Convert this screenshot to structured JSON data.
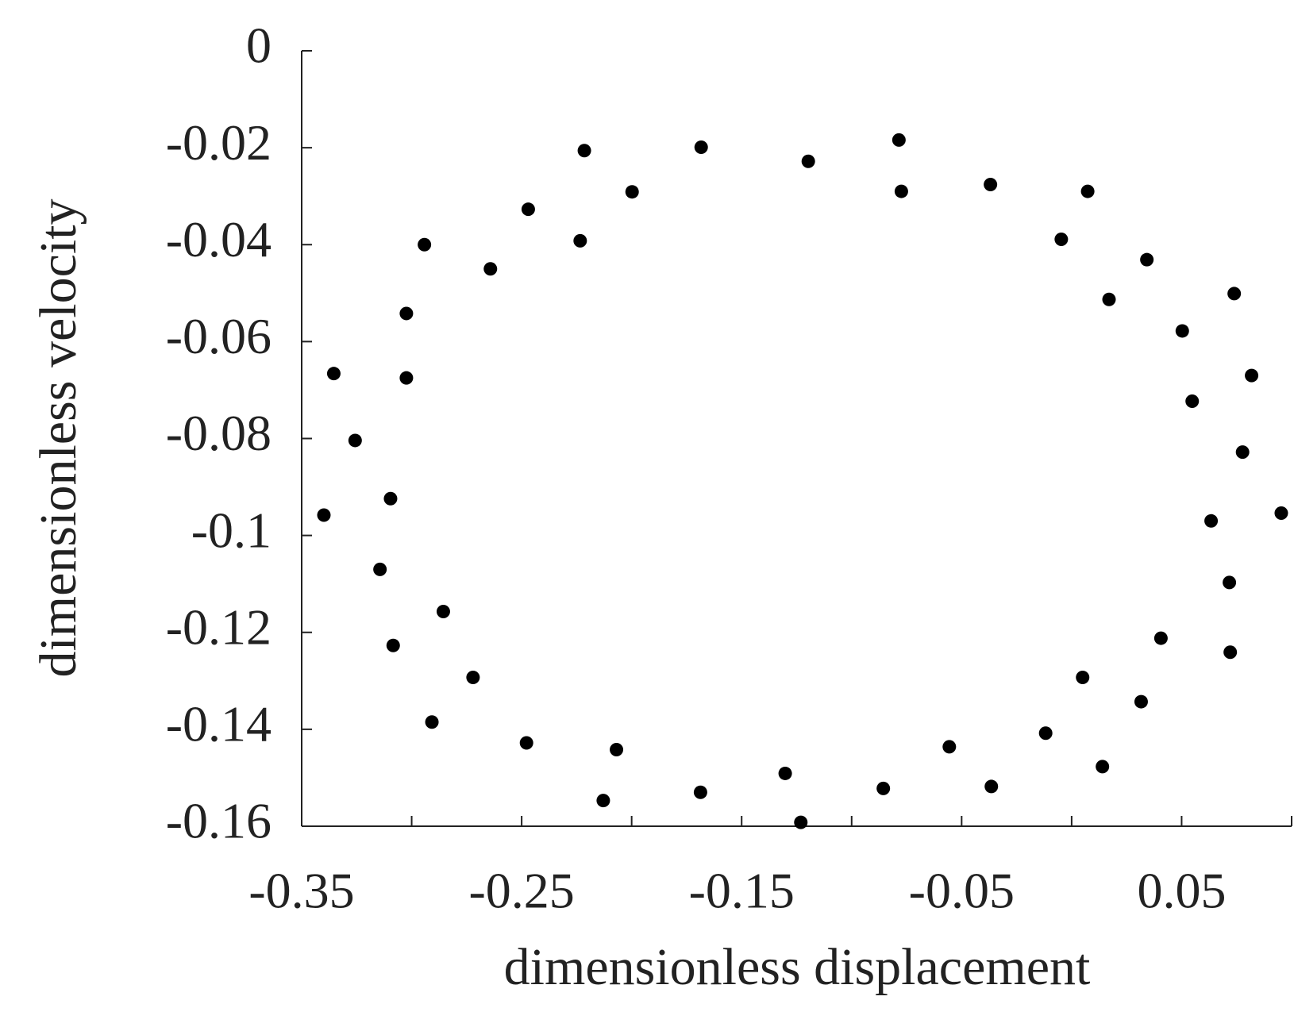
{
  "chart_data": {
    "type": "scatter",
    "x_label": "dimensionless displacement",
    "y_label": "dimensionless velocity",
    "color": "#000000",
    "xlim": [
      -0.35,
      0.1
    ],
    "ylim": [
      -0.16,
      0
    ],
    "xticks": [
      -0.35,
      -0.25,
      -0.15,
      -0.05,
      0.05
    ],
    "xminor_ticks": [
      -0.3,
      -0.2,
      -0.1,
      0,
      0.1
    ],
    "yticks": [
      0,
      -0.02,
      -0.04,
      -0.06,
      -0.08,
      -0.1,
      -0.12,
      -0.14,
      -0.16
    ],
    "x": [
      -0.2215,
      -0.1684,
      -0.1197,
      -0.0785,
      -0.0774,
      -0.0369,
      0.0073,
      -0.0047,
      0.0342,
      0.017,
      0.0739,
      0.0503,
      0.0818,
      0.0548,
      0.0777,
      0.0953,
      0.0634,
      0.0717,
      0.0406,
      0.0721,
      0.005,
      0.0316,
      -0.0118,
      0.014,
      -0.0556,
      -0.0365,
      -0.0856,
      -0.1302,
      -0.1231,
      -0.1687,
      -0.2069,
      -0.2129,
      -0.2478,
      -0.2908,
      -0.2721,
      -0.2856,
      -0.3084,
      -0.3144,
      -0.3096,
      -0.3399,
      -0.3257,
      -0.3354,
      -0.3024,
      -0.3024,
      -0.2942,
      -0.2642,
      -0.247,
      -0.2234,
      -0.1998
    ],
    "values": [
      -0.0206,
      -0.0199,
      -0.0228,
      -0.0184,
      -0.029,
      -0.0276,
      -0.029,
      -0.0389,
      -0.0431,
      -0.0513,
      -0.0501,
      -0.0578,
      -0.067,
      -0.0723,
      -0.0828,
      -0.0954,
      -0.097,
      -0.1097,
      -0.1212,
      -0.1241,
      -0.1293,
      -0.1343,
      -0.1408,
      -0.1477,
      -0.1436,
      -0.1518,
      -0.1522,
      -0.1491,
      -0.1592,
      -0.153,
      -0.1442,
      -0.1547,
      -0.1428,
      -0.1385,
      -0.1293,
      -0.1157,
      -0.1227,
      -0.107,
      -0.0924,
      -0.0958,
      -0.0804,
      -0.0666,
      -0.0675,
      -0.0542,
      -0.04,
      -0.045,
      -0.0327,
      -0.0392,
      -0.0291
    ]
  }
}
